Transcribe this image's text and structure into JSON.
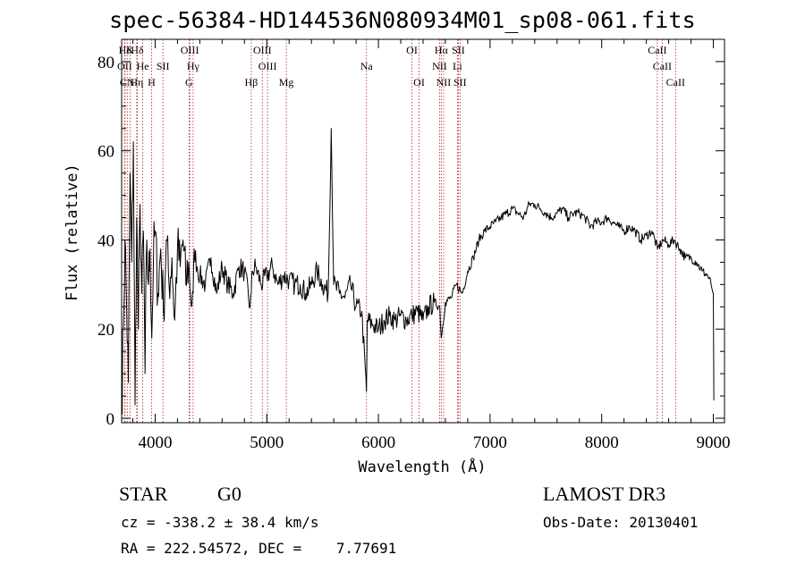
{
  "title": "spec-56384-HD144536N080934M01_sp08-061.fits",
  "info": {
    "object_class": "STAR",
    "subclass": "G0",
    "survey": "LAMOST DR3",
    "redshift_text": "cz = -338.2 ± 38.4 km/s",
    "obs_date_text": "Obs-Date: 20130401",
    "coords_text": "RA = 222.54572, DEC =    7.77691"
  },
  "chart_data": {
    "type": "line",
    "title": "spec-56384-HD144536N080934M01_sp08-061.fits",
    "xlabel": "Wavelength (Å)",
    "ylabel": "Flux (relative)",
    "xlim": [
      3700,
      9100
    ],
    "ylim": [
      -1,
      85
    ],
    "x_ticks": [
      4000,
      5000,
      6000,
      7000,
      8000,
      9000
    ],
    "x_minor_step": 200,
    "y_ticks": [
      0,
      20,
      40,
      60,
      80
    ],
    "y_minor_step": 5,
    "line_color": "#000000",
    "marker_color": "#b22222",
    "series": [
      {
        "name": "flux",
        "x": [
          3700,
          3715,
          3730,
          3745,
          3760,
          3775,
          3790,
          3805,
          3820,
          3835,
          3850,
          3865,
          3880,
          3895,
          3910,
          3925,
          3940,
          3955,
          3970,
          3985,
          4000,
          4025,
          4050,
          4075,
          4100,
          4125,
          4150,
          4175,
          4200,
          4225,
          4250,
          4275,
          4300,
          4325,
          4340,
          4350,
          4375,
          4400,
          4450,
          4500,
          4550,
          4600,
          4650,
          4700,
          4750,
          4800,
          4850,
          4861,
          4870,
          4900,
          4950,
          5000,
          5050,
          5100,
          5150,
          5200,
          5250,
          5300,
          5350,
          5400,
          5450,
          5500,
          5550,
          5577,
          5600,
          5650,
          5700,
          5750,
          5800,
          5850,
          5893,
          5900,
          5950,
          6000,
          6050,
          6100,
          6150,
          6200,
          6250,
          6300,
          6350,
          6400,
          6450,
          6500,
          6550,
          6563,
          6600,
          6650,
          6700,
          6750,
          6800,
          6850,
          6900,
          6950,
          7000,
          7050,
          7100,
          7150,
          7200,
          7250,
          7300,
          7350,
          7400,
          7450,
          7500,
          7550,
          7600,
          7650,
          7700,
          7750,
          7800,
          7850,
          7900,
          7950,
          8000,
          8050,
          8100,
          8150,
          8200,
          8250,
          8300,
          8350,
          8400,
          8450,
          8500,
          8550,
          8600,
          8650,
          8700,
          8750,
          8800,
          8850,
          8900,
          8950,
          8980,
          9000,
          9005
        ],
        "y": [
          2,
          20,
          40,
          25,
          8,
          55,
          35,
          62,
          3,
          45,
          20,
          48,
          28,
          42,
          10,
          40,
          30,
          38,
          18,
          36,
          42,
          28,
          38,
          24,
          40,
          30,
          36,
          22,
          38,
          34,
          40,
          30,
          35,
          25,
          28,
          38,
          34,
          32,
          30,
          36,
          28,
          34,
          30,
          28,
          34,
          33,
          25,
          28,
          33,
          34,
          30,
          32,
          34,
          30,
          32,
          31,
          30,
          30,
          28,
          30,
          33,
          30,
          28,
          65,
          30,
          28,
          27,
          30,
          25,
          24,
          6,
          22,
          21,
          20,
          22,
          23,
          22,
          23,
          22,
          23,
          24,
          22,
          25,
          26,
          25,
          18,
          26,
          27,
          30,
          28,
          33,
          36,
          40,
          42,
          43,
          44,
          45,
          46,
          47,
          46,
          45,
          48,
          48,
          47,
          46,
          45,
          46,
          47,
          45,
          46,
          46,
          45,
          43,
          44,
          44,
          45,
          44,
          43,
          42,
          43,
          42,
          40,
          41,
          42,
          38,
          40,
          39,
          40,
          38,
          36,
          36,
          35,
          33,
          32,
          30,
          28,
          4
        ]
      }
    ],
    "markers": [
      {
        "name": "Hδ",
        "x": 3730,
        "row": 0
      },
      {
        "name": "K",
        "x": 3775,
        "row": 0
      },
      {
        "name": "Hδ",
        "x": 3840,
        "row": 0
      },
      {
        "name": "OIII",
        "x": 4310,
        "row": 0
      },
      {
        "name": "OIII",
        "x": 4960,
        "row": 0
      },
      {
        "name": "OI",
        "x": 6300,
        "row": 0
      },
      {
        "name": "Hα",
        "x": 6563,
        "row": 0
      },
      {
        "name": "SII",
        "x": 6716,
        "row": 0
      },
      {
        "name": "CaII",
        "x": 8498,
        "row": 0
      },
      {
        "name": "OII",
        "x": 3727,
        "row": 1
      },
      {
        "name": "He",
        "x": 3889,
        "row": 1
      },
      {
        "name": "SII",
        "x": 4070,
        "row": 1
      },
      {
        "name": "Hγ",
        "x": 4340,
        "row": 1
      },
      {
        "name": "OIII",
        "x": 5007,
        "row": 1
      },
      {
        "name": "Na",
        "x": 5893,
        "row": 1
      },
      {
        "name": "NII",
        "x": 6548,
        "row": 1
      },
      {
        "name": "Li",
        "x": 6708,
        "row": 1
      },
      {
        "name": "CaII",
        "x": 8542,
        "row": 1
      },
      {
        "name": "CN",
        "x": 3750,
        "row": 2
      },
      {
        "name": "Hη",
        "x": 3835,
        "row": 2
      },
      {
        "name": "H",
        "x": 3968,
        "row": 2
      },
      {
        "name": "G",
        "x": 4304,
        "row": 2
      },
      {
        "name": "Hβ",
        "x": 4861,
        "row": 2
      },
      {
        "name": "Mg",
        "x": 5175,
        "row": 2
      },
      {
        "name": "OI",
        "x": 6364,
        "row": 2
      },
      {
        "name": "NII",
        "x": 6584,
        "row": 2
      },
      {
        "name": "SII",
        "x": 6731,
        "row": 2
      },
      {
        "name": "CaII",
        "x": 8662,
        "row": 2
      }
    ]
  }
}
